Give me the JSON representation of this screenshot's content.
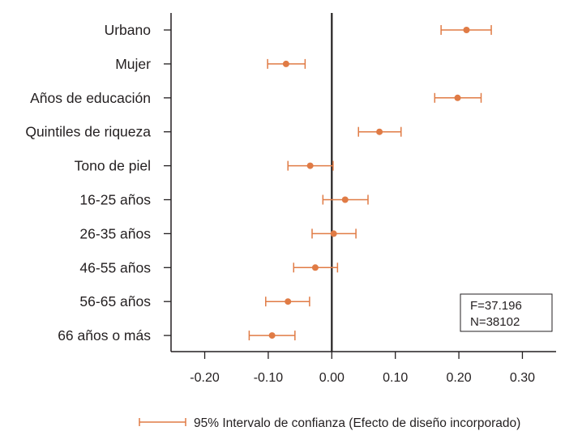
{
  "chart_data": {
    "type": "scatter",
    "subtype": "coefficient-plot",
    "categories": [
      "Urbano",
      "Mujer",
      "Años de educación",
      "Quintiles de riqueza",
      "Tono de piel",
      "16-25 años",
      "26-35 años",
      "46-55 años",
      "56-65 años",
      "66 años o más"
    ],
    "estimates": [
      0.212,
      -0.072,
      0.198,
      0.075,
      -0.034,
      0.021,
      0.003,
      -0.026,
      -0.069,
      -0.094
    ],
    "ci_low": [
      0.172,
      -0.101,
      0.162,
      0.042,
      -0.069,
      -0.014,
      -0.031,
      -0.06,
      -0.104,
      -0.13
    ],
    "ci_high": [
      0.251,
      -0.042,
      0.235,
      0.109,
      0.002,
      0.057,
      0.038,
      0.009,
      -0.035,
      -0.058
    ],
    "x_ticks": [
      "-0.20",
      "-0.10",
      "0.00",
      "0.10",
      "0.20",
      "0.30"
    ],
    "x_tick_values": [
      -0.2,
      -0.1,
      0.0,
      0.1,
      0.2,
      0.3
    ],
    "xlim": [
      -0.253,
      0.353
    ],
    "reference_line": 0,
    "stats": {
      "f": "F=37.196",
      "n": "N=38102"
    },
    "legend": "95% Intervalo de confianza (Efecto de diseño incorporado)",
    "grid": false,
    "colors": {
      "marker": "#e07b45",
      "axis": "#231f20"
    }
  }
}
